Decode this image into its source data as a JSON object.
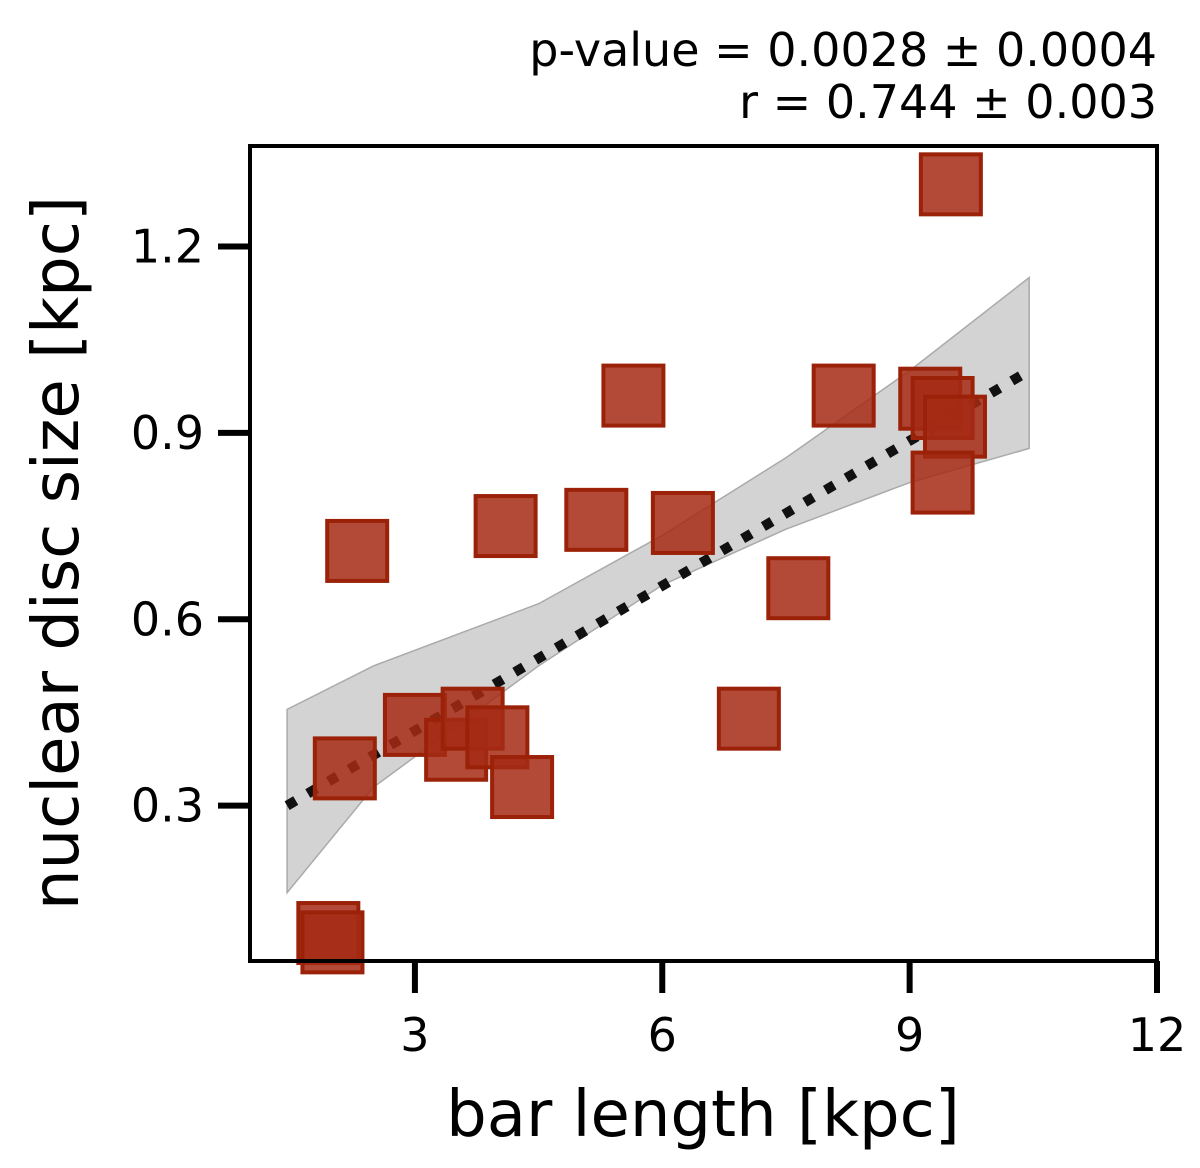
{
  "chart_data": {
    "type": "scatter",
    "title": "",
    "annotations": [
      "p-value = 0.0028 ± 0.0004",
      "r = 0.744 ± 0.003"
    ],
    "xlabel": "bar length [kpc]",
    "ylabel": "nuclear disc size [kpc]",
    "xlim": [
      1.0,
      12.0
    ],
    "ylim": [
      0.05,
      1.3617
    ],
    "xticks": [
      3,
      6,
      9,
      12
    ],
    "xtick_labels": [
      "3",
      "6",
      "9",
      "12"
    ],
    "yticks": [
      0.3,
      0.6,
      0.9,
      1.2
    ],
    "ytick_labels": [
      "0.3",
      "0.6",
      "0.9",
      "1.2"
    ],
    "grid": false,
    "marker": "square",
    "marker_color": "#a52a14",
    "points": [
      {
        "x": 1.95,
        "y": 0.095
      },
      {
        "x": 2.0,
        "y": 0.08
      },
      {
        "x": 2.15,
        "y": 0.36
      },
      {
        "x": 2.3,
        "y": 0.71
      },
      {
        "x": 3.0,
        "y": 0.43
      },
      {
        "x": 3.5,
        "y": 0.39
      },
      {
        "x": 3.7,
        "y": 0.44
      },
      {
        "x": 4.0,
        "y": 0.41
      },
      {
        "x": 4.3,
        "y": 0.33
      },
      {
        "x": 4.1,
        "y": 0.75
      },
      {
        "x": 5.2,
        "y": 0.76
      },
      {
        "x": 5.65,
        "y": 0.96
      },
      {
        "x": 6.25,
        "y": 0.755
      },
      {
        "x": 7.05,
        "y": 0.44
      },
      {
        "x": 7.65,
        "y": 0.65
      },
      {
        "x": 8.2,
        "y": 0.96
      },
      {
        "x": 9.25,
        "y": 0.955
      },
      {
        "x": 9.4,
        "y": 0.94
      },
      {
        "x": 9.55,
        "y": 0.91
      },
      {
        "x": 9.4,
        "y": 0.82
      },
      {
        "x": 9.5,
        "y": 1.3
      }
    ],
    "fit_line": {
      "style": "dotted",
      "color": "#111111",
      "x": [
        1.45,
        10.45
      ],
      "y": [
        0.3,
        1.0
      ]
    },
    "confidence_band": {
      "color": "#bbbbbb",
      "x": [
        1.45,
        2.5,
        4.5,
        6.0,
        7.5,
        9.0,
        10.45
      ],
      "upper": [
        0.455,
        0.525,
        0.625,
        0.735,
        0.86,
        1.0,
        1.15
      ],
      "lower": [
        0.16,
        0.33,
        0.525,
        0.655,
        0.745,
        0.82,
        0.875
      ]
    }
  }
}
